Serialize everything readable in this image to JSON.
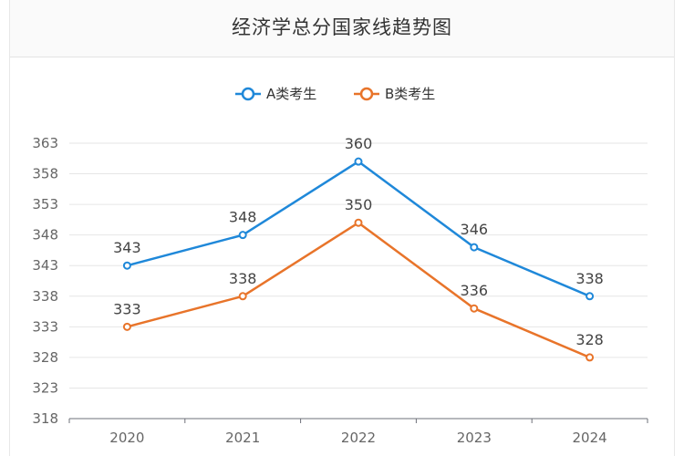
{
  "chart_data": {
    "type": "line",
    "title": "经济学总分国家线趋势图",
    "categories": [
      "2020",
      "2021",
      "2022",
      "2023",
      "2024"
    ],
    "series": [
      {
        "name": "A类考生",
        "color": "#1f88d9",
        "values": [
          343,
          348,
          360,
          346,
          338
        ]
      },
      {
        "name": "B类考生",
        "color": "#e8742a",
        "values": [
          333,
          338,
          350,
          336,
          328
        ]
      }
    ],
    "yticks": [
      318,
      323,
      328,
      333,
      338,
      343,
      348,
      353,
      358,
      363
    ],
    "ylim": [
      318,
      363
    ],
    "grid": true,
    "legend": "top-center"
  }
}
